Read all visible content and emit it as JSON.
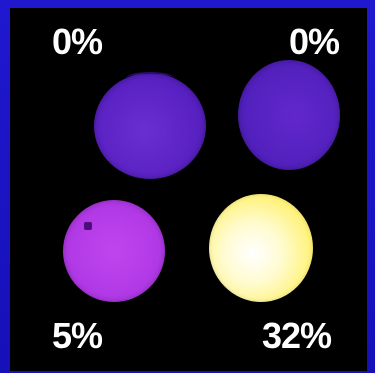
{
  "labels": {
    "top_left": "0%",
    "top_right": "0%",
    "bottom_left": "5%",
    "bottom_right": "32%"
  },
  "colors": {
    "frame": "#1a14c4",
    "panel": "#000000",
    "sample_top_left": "#5b22c4",
    "sample_top_right": "#5321be",
    "sample_bottom_left": "#b23ae6",
    "sample_bottom_right": "#fff27a",
    "label_text": "#ffffff"
  }
}
